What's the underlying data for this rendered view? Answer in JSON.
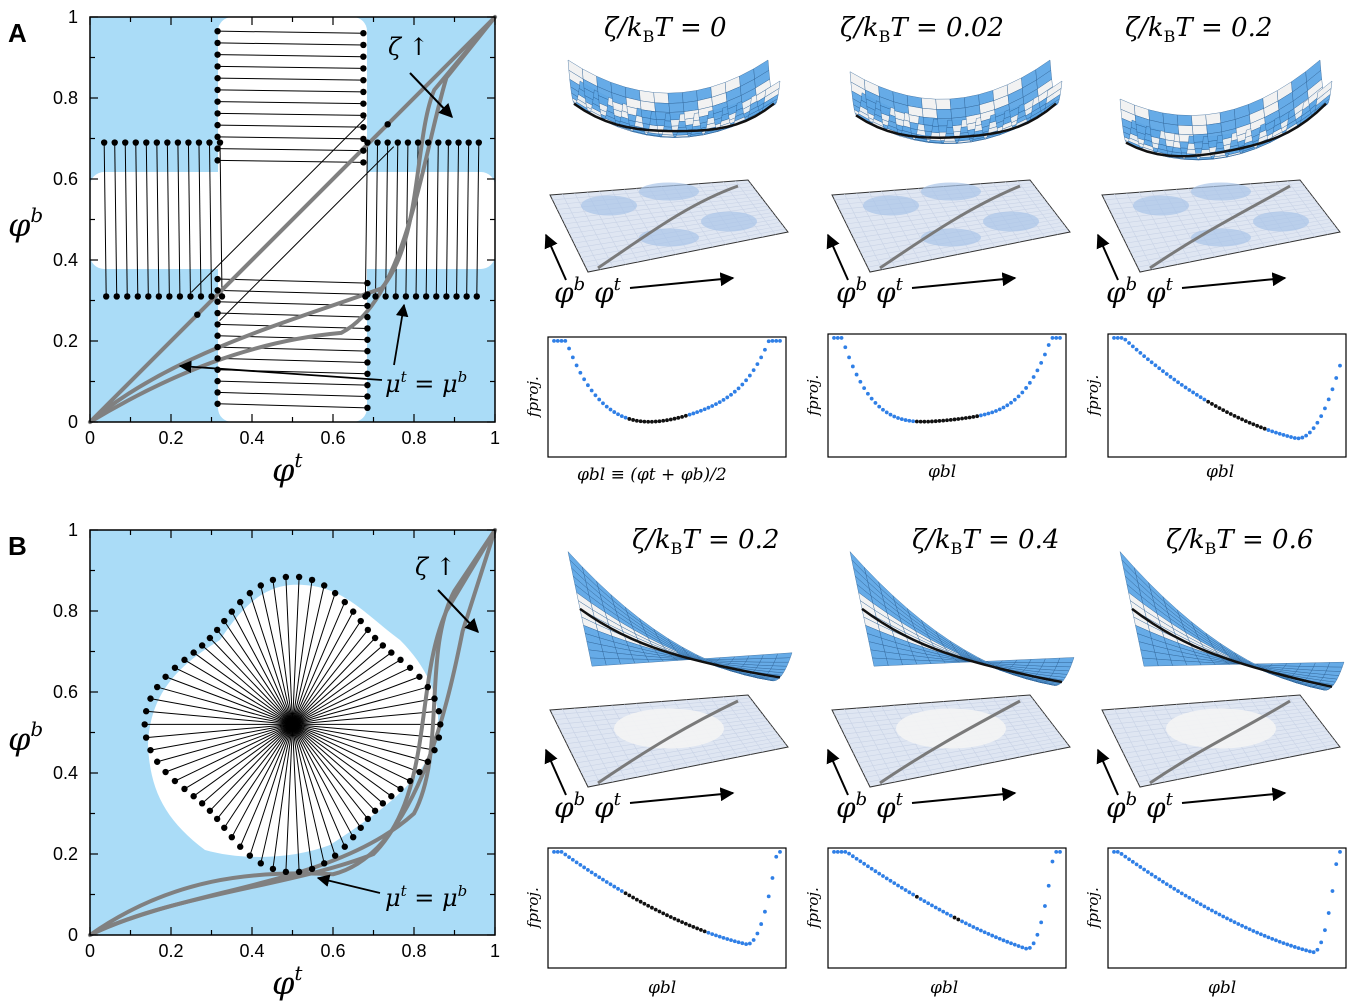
{
  "panel_a": {
    "label": "A",
    "phase_plot": {
      "x_ticks": [
        "0",
        "0.2",
        "0.4",
        "0.6",
        "0.8",
        "1"
      ],
      "y_ticks": [
        "0",
        "0.2",
        "0.4",
        "0.6",
        "0.8",
        "1"
      ],
      "xlabel_base": "φ",
      "xlabel_sup": "t",
      "ylabel_base": "φ",
      "ylabel_sup": "b",
      "zeta_annot": "ζ ↑",
      "mu_annot": {
        "base1": "μ",
        "sup1": "t",
        "mid": " = ",
        "base2": "μ",
        "sup2": "b"
      }
    },
    "landscapes": [
      {
        "title_lhs": "ζ/k",
        "title_sub": "B",
        "title_rhs": "T = 0"
      },
      {
        "title_lhs": "ζ/k",
        "title_sub": "B",
        "title_rhs": "T = 0.02"
      },
      {
        "title_lhs": "ζ/k",
        "title_sub": "B",
        "title_rhs": "T = 0.2"
      }
    ],
    "profiles_xlabel_first": "φbl ≡ (φt + φb)/2",
    "profiles_xlabel": "φbl",
    "profiles_ylabel": "fproj."
  },
  "panel_b": {
    "label": "B",
    "phase_plot": {
      "x_ticks": [
        "0",
        "0.2",
        "0.4",
        "0.6",
        "0.8",
        "1"
      ],
      "y_ticks": [
        "0",
        "0.2",
        "0.4",
        "0.6",
        "0.8",
        "1"
      ],
      "xlabel_base": "φ",
      "xlabel_sup": "t",
      "ylabel_base": "φ",
      "ylabel_sup": "b",
      "zeta_annot": "ζ ↑",
      "mu_annot": {
        "base1": "μ",
        "sup1": "t",
        "mid": " = ",
        "base2": "μ",
        "sup2": "b"
      }
    },
    "landscapes": [
      {
        "title_lhs": "ζ/k",
        "title_sub": "B",
        "title_rhs": "T = 0.2"
      },
      {
        "title_lhs": "ζ/k",
        "title_sub": "B",
        "title_rhs": "T = 0.4"
      },
      {
        "title_lhs": "ζ/k",
        "title_sub": "B",
        "title_rhs": "T = 0.6"
      }
    ],
    "profiles_xlabel": "φbl",
    "profiles_ylabel": "fproj."
  },
  "axis_arrows": {
    "phi_b": "φb",
    "phi_t": "φt"
  },
  "colors": {
    "light_blue": "#aadcf7",
    "surface_blue": "#5ea7e6",
    "surface_white": "#f2f2f2",
    "curve_gray": "#808080",
    "dot_blue": "#2f7fe6",
    "dot_black": "#111111"
  }
}
